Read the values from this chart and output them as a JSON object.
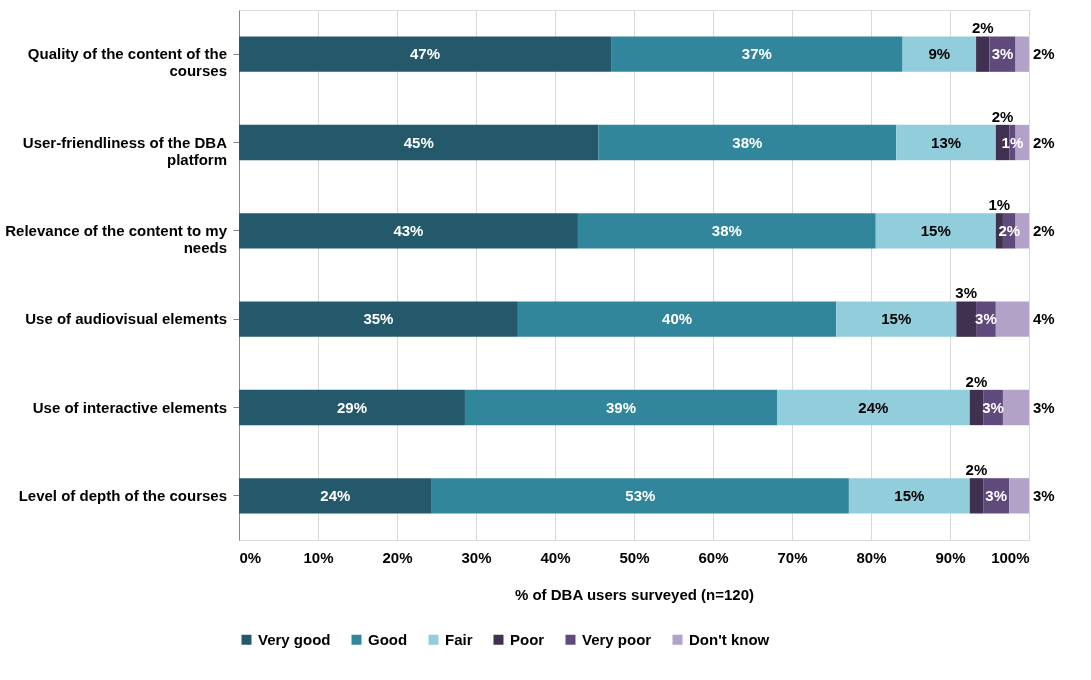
{
  "chart_data": {
    "type": "bar",
    "orientation": "horizontal",
    "stacked": true,
    "categories": [
      "Quality of the content of the courses",
      "User-friendliness of the DBA platform",
      "Relevance of the content to my needs",
      "Use of audiovisual elements",
      "Use of interactive elements",
      "Level of depth of the courses"
    ],
    "series": [
      {
        "name": "Very good",
        "color": "#23596a",
        "values": [
          47.1,
          45.5,
          42.9,
          35.3,
          28.6,
          24.4
        ],
        "value_labels": [
          "47%",
          "45%",
          "43%",
          "35%",
          "29%",
          "24%"
        ]
      },
      {
        "name": "Good",
        "color": "#31869b",
        "values": [
          36.9,
          37.7,
          37.7,
          40.3,
          39.5,
          52.8
        ],
        "value_labels": [
          "37%",
          "38%",
          "38%",
          "40%",
          "39%",
          "53%"
        ]
      },
      {
        "name": "Fair",
        "color": "#92cddc",
        "values": [
          9.3,
          12.6,
          15.2,
          15.2,
          24.4,
          15.3
        ],
        "value_labels": [
          "9%",
          "13%",
          "15%",
          "15%",
          "24%",
          "15%"
        ]
      },
      {
        "name": "Poor",
        "color": "#403151",
        "values": [
          1.7,
          1.7,
          0.9,
          2.5,
          1.7,
          1.7
        ],
        "value_labels": [
          "2%",
          "2%",
          "1%",
          "3%",
          "2%",
          "2%"
        ]
      },
      {
        "name": "Very poor",
        "color": "#604a7b",
        "values": [
          3.3,
          0.8,
          1.6,
          2.5,
          2.5,
          3.3
        ],
        "value_labels": [
          "3%",
          "1%",
          "2%",
          "3%",
          "3%",
          "3%"
        ]
      },
      {
        "name": "Don't know",
        "color": "#b3a2c7",
        "values": [
          1.7,
          1.7,
          1.7,
          4.2,
          3.3,
          2.5
        ],
        "value_labels": [
          "2%",
          "2%",
          "2%",
          "4%",
          "3%",
          "3%"
        ]
      }
    ],
    "xlabel": "% of DBA users surveyed (n=120)",
    "xlim": [
      0,
      100
    ],
    "xticks": [
      {
        "value": 0,
        "label": "0%"
      },
      {
        "value": 10,
        "label": "10%"
      },
      {
        "value": 20,
        "label": "20%"
      },
      {
        "value": 30,
        "label": "30%"
      },
      {
        "value": 40,
        "label": "40%"
      },
      {
        "value": 50,
        "label": "50%"
      },
      {
        "value": 60,
        "label": "60%"
      },
      {
        "value": 70,
        "label": "70%"
      },
      {
        "value": 80,
        "label": "80%"
      },
      {
        "value": 90,
        "label": "90%"
      },
      {
        "value": 100,
        "label": "100%"
      }
    ],
    "grid": "x",
    "legend": "bottom"
  }
}
